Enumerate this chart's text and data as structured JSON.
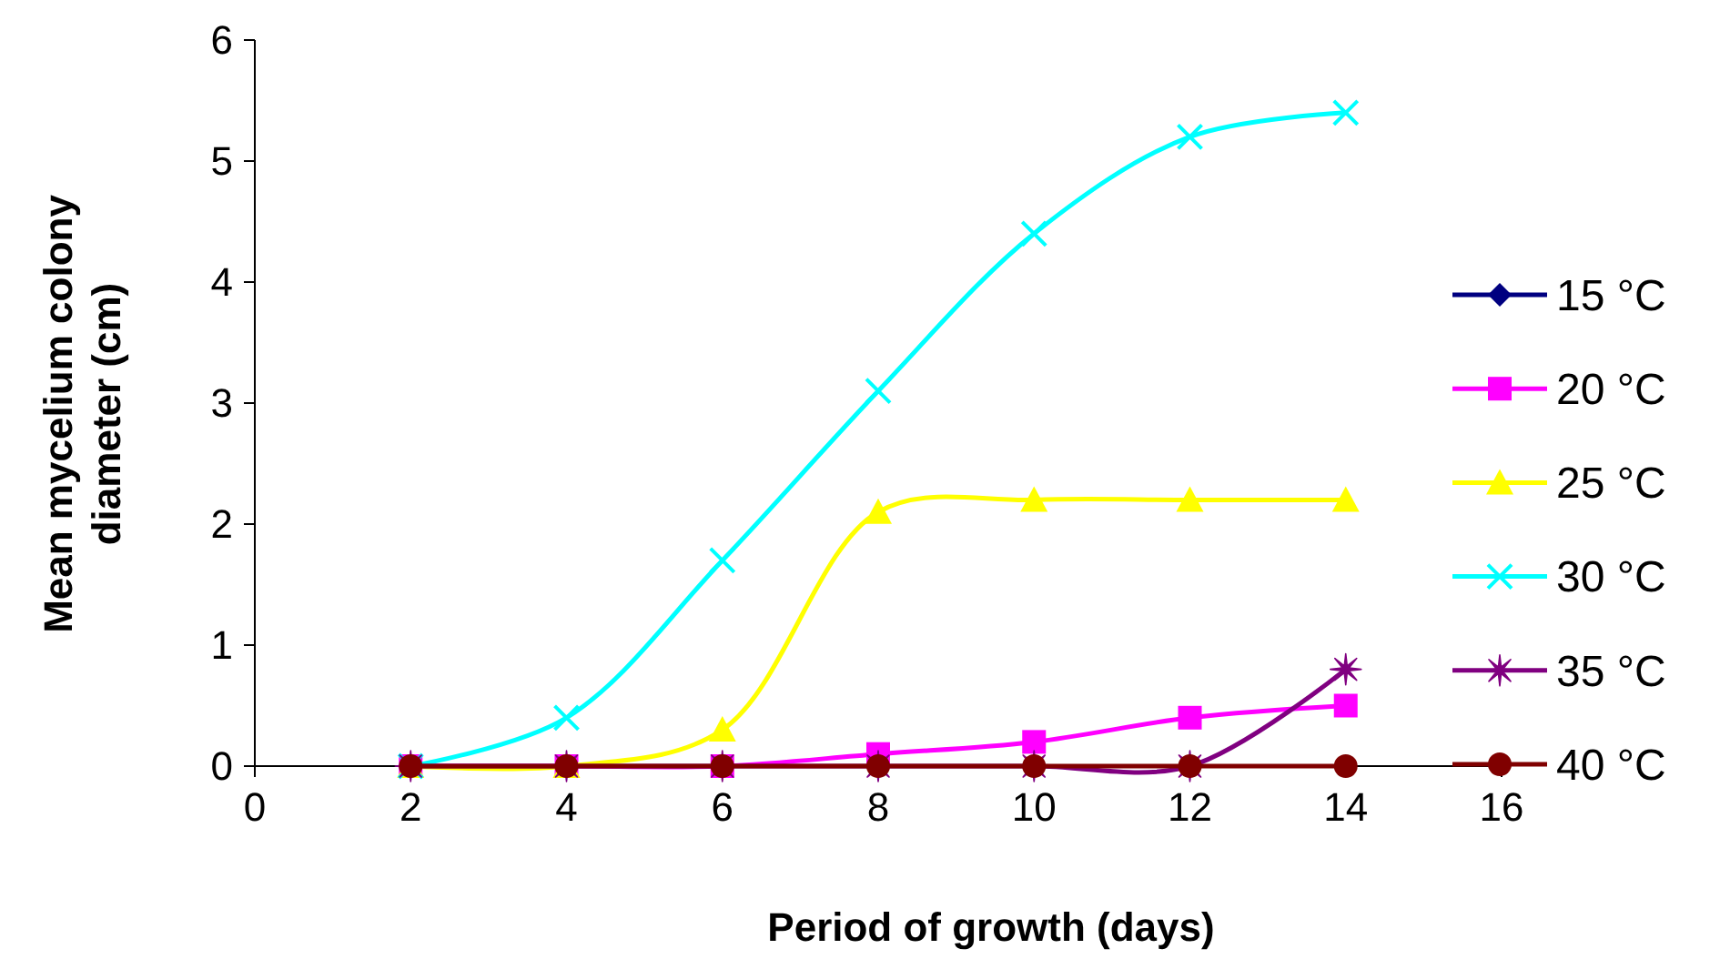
{
  "chart_data": {
    "type": "line",
    "xlabel": "Period of growth (days)",
    "ylabel": "Mean mycelium colony diameter (cm)",
    "x": [
      2,
      4,
      6,
      8,
      10,
      12,
      14
    ],
    "xlim": [
      0,
      16
    ],
    "xticks": [
      0,
      2,
      4,
      6,
      8,
      10,
      12,
      14,
      16
    ],
    "ylim": [
      0,
      6
    ],
    "yticks": [
      0,
      1,
      2,
      3,
      4,
      5,
      6
    ],
    "grid": false,
    "legend": "right",
    "series": [
      {
        "name": "15 °C",
        "color": "#000080",
        "marker": "diamond",
        "values": [
          null,
          null,
          null,
          null,
          null,
          null,
          null
        ]
      },
      {
        "name": "20 °C",
        "color": "#ff00ff",
        "marker": "square",
        "values": [
          0,
          0,
          0,
          0.1,
          0.2,
          0.4,
          0.5
        ]
      },
      {
        "name": "25 °C",
        "color": "#ffff00",
        "marker": "triangle",
        "values": [
          0,
          0,
          0.3,
          2.1,
          2.2,
          2.2,
          2.2
        ]
      },
      {
        "name": "30 °C",
        "color": "#00ffff",
        "marker": "cross",
        "values": [
          0,
          0.4,
          1.7,
          3.1,
          4.4,
          5.2,
          5.4
        ]
      },
      {
        "name": "35 °C",
        "color": "#800080",
        "marker": "star",
        "values": [
          0,
          0,
          0,
          0,
          0,
          0,
          0.8
        ]
      },
      {
        "name": "40 °C",
        "color": "#800000",
        "marker": "circle",
        "values": [
          0,
          0,
          0,
          0,
          0,
          0,
          0
        ]
      }
    ]
  }
}
